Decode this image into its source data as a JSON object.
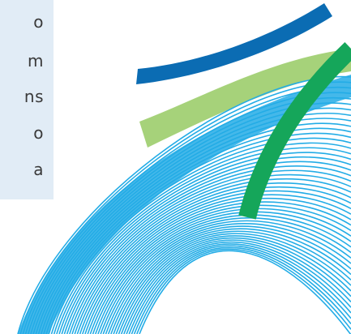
{
  "text_panel": {
    "fragments": [
      "o",
      "m",
      "ns",
      "o",
      "a"
    ]
  },
  "artwork": {
    "colors": {
      "navy_stroke": "#0b6cb3",
      "light_green_band": "#a6d27a",
      "green_stroke": "#15a65a",
      "cyan_lines": "#23ace6"
    }
  }
}
